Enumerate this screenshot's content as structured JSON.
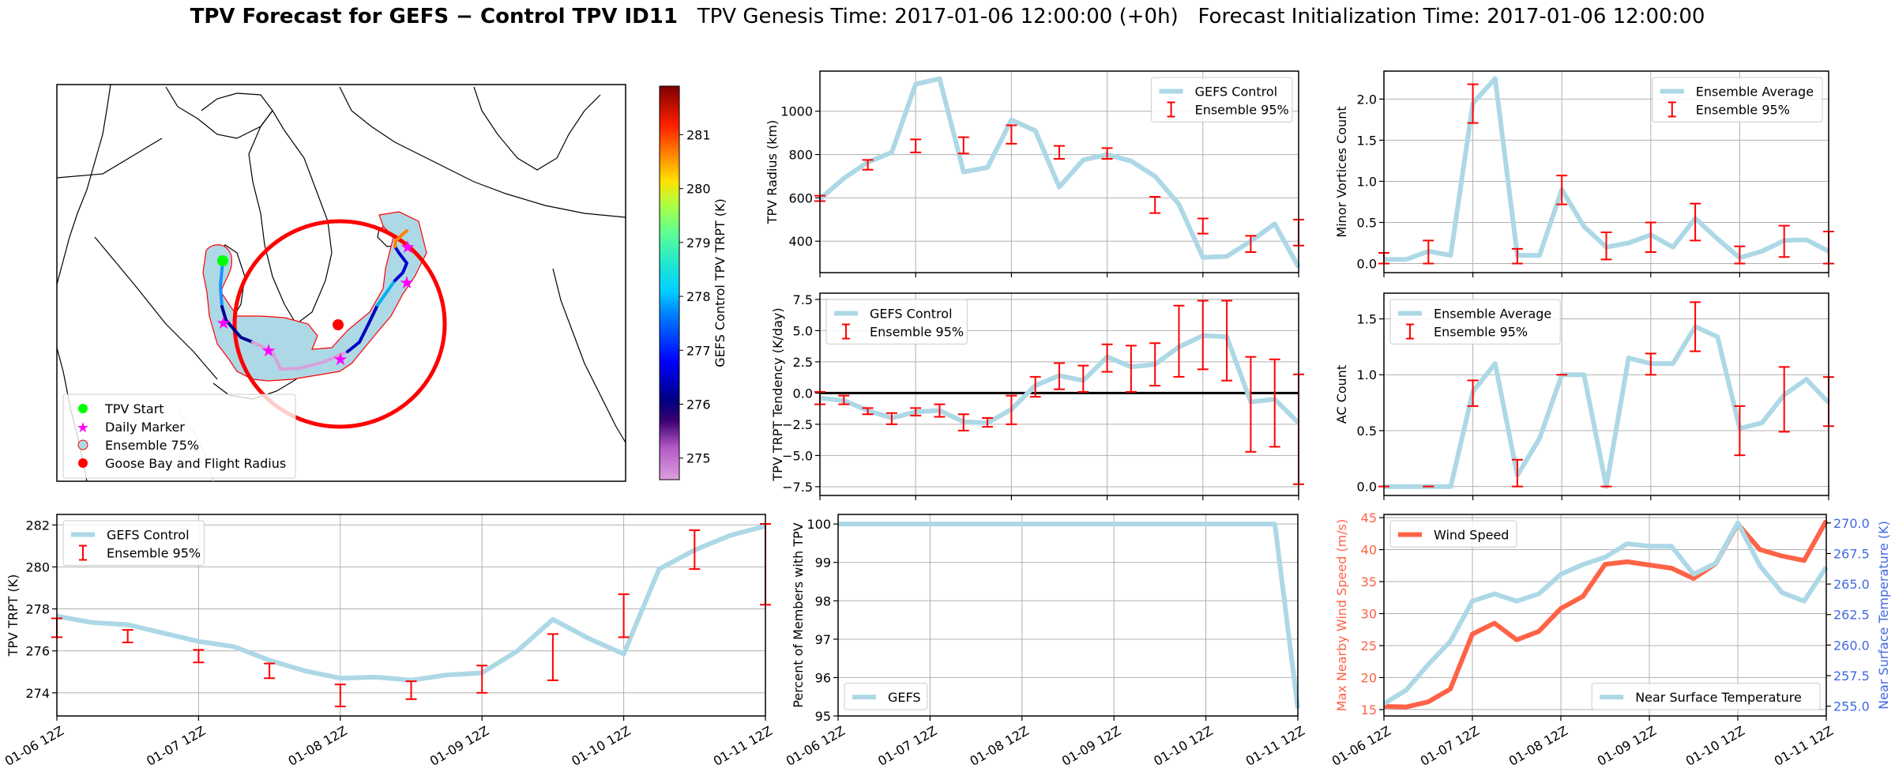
{
  "title": {
    "bold": "TPV Forecast for GEFS − Control TPV ID11",
    "genesis": "TPV Genesis Time: 2017-01-06 12:00:00 (+0h)",
    "init": "Forecast Initialization Time: 2017-01-06 12:00:00"
  },
  "colors": {
    "line": "#add8e6",
    "errorbar": "#ff0000",
    "wind": "#ff6347",
    "temp_axis": "#4169e1",
    "grid": "#b0b0b0"
  },
  "x_tick_labels": [
    "01-06 12Z",
    "01-07 12Z",
    "01-08 12Z",
    "01-09 12Z",
    "01-10 12Z",
    "01-11 12Z"
  ],
  "map": {
    "legend": [
      "TPV Start",
      "Daily Marker",
      "Ensemble 75%",
      "Goose Bay and Flight Radius"
    ],
    "colorbar": {
      "label": "GEFS Control TPV TRPT (K)",
      "ticks": [
        "275",
        "276",
        "277",
        "278",
        "279",
        "280",
        "281"
      ],
      "range": [
        274.6,
        281.9
      ]
    }
  },
  "chart_data": [
    {
      "id": "radius",
      "type": "line",
      "ylabel": "TPV Radius (km)",
      "ylim": [
        255,
        1185
      ],
      "yticks": [
        400,
        600,
        800,
        1000
      ],
      "ytick_labels": [
        "400",
        "600",
        "800",
        "1000"
      ],
      "legend": [
        "GEFS Control",
        "Ensemble 95%"
      ],
      "legend_pos": "top-right",
      "x": [
        0,
        0.25,
        0.5,
        0.75,
        1,
        1.25,
        1.5,
        1.75,
        2,
        2.25,
        2.5,
        2.75,
        3,
        3.25,
        3.5,
        3.75,
        4,
        4.25,
        4.5,
        4.75,
        5
      ],
      "series": [
        {
          "name": "GEFS Control",
          "values": [
            595,
            690,
            765,
            810,
            1125,
            1150,
            720,
            740,
            960,
            910,
            650,
            775,
            800,
            770,
            700,
            570,
            325,
            330,
            400,
            480,
            280
          ]
        }
      ],
      "errorbars": {
        "x": [
          0,
          0.5,
          1,
          1.5,
          2,
          2.5,
          3,
          3.5,
          4,
          4.5,
          5
        ],
        "low": [
          585,
          730,
          810,
          805,
          850,
          780,
          780,
          530,
          435,
          350,
          380
        ],
        "high": [
          610,
          775,
          870,
          880,
          935,
          840,
          830,
          605,
          505,
          425,
          500
        ]
      },
      "show_xticklabels": false
    },
    {
      "id": "tendency",
      "type": "line",
      "ylabel": "TPV TRPT Tendency (K/day)",
      "ylim": [
        -8.2,
        8.0
      ],
      "yticks": [
        -7.5,
        -5.0,
        -2.5,
        0,
        2.5,
        5.0,
        7.5
      ],
      "ytick_labels": [
        "−7.5",
        "−5.0",
        "−2.5",
        "0.0",
        "2.5",
        "5.0",
        "7.5"
      ],
      "legend": [
        "GEFS Control",
        "Ensemble 95%"
      ],
      "legend_pos": "top-left",
      "zero_line": true,
      "x": [
        0,
        0.25,
        0.5,
        0.75,
        1,
        1.25,
        1.5,
        1.75,
        2,
        2.25,
        2.5,
        2.75,
        3,
        3.25,
        3.5,
        3.75,
        4,
        4.25,
        4.5,
        4.75,
        5
      ],
      "series": [
        {
          "name": "GEFS Control",
          "values": [
            -0.4,
            -0.6,
            -1.4,
            -2.0,
            -1.5,
            -1.4,
            -2.3,
            -2.4,
            -1.3,
            0.6,
            1.4,
            1.0,
            2.9,
            2.1,
            2.3,
            3.7,
            4.6,
            4.5,
            -0.7,
            -0.5,
            -2.4
          ]
        }
      ],
      "errorbars": {
        "x": [
          0,
          0.25,
          0.5,
          0.75,
          1,
          1.25,
          1.5,
          1.75,
          2,
          2.25,
          2.5,
          2.75,
          3,
          3.25,
          3.5,
          3.75,
          4,
          4.25,
          4.5,
          4.75,
          5
        ],
        "low": [
          -0.9,
          -0.9,
          -1.7,
          -2.5,
          -1.8,
          -1.9,
          -3.0,
          -2.7,
          -2.5,
          -0.3,
          0.3,
          0.1,
          1.7,
          0.1,
          0.6,
          1.3,
          1.9,
          1.0,
          -4.7,
          -4.3,
          -7.3
        ],
        "high": [
          0.1,
          -0.2,
          -1.2,
          -1.6,
          -1.2,
          -0.9,
          -1.7,
          -2.0,
          -0.2,
          1.3,
          2.4,
          2.2,
          3.9,
          3.8,
          4.0,
          7.0,
          7.4,
          7.4,
          2.9,
          2.7,
          1.5
        ]
      },
      "show_xticklabels": false
    },
    {
      "id": "minor_vortices",
      "type": "line",
      "ylabel": "Minor Vortices Count",
      "ylim": [
        -0.11,
        2.34
      ],
      "yticks": [
        0,
        0.5,
        1.0,
        1.5,
        2.0
      ],
      "ytick_labels": [
        "0.0",
        "0.5",
        "1.0",
        "1.5",
        "2.0"
      ],
      "legend": [
        "Ensemble Average",
        "Ensemble 95%"
      ],
      "legend_pos": "top-right",
      "x": [
        0,
        0.25,
        0.5,
        0.75,
        1,
        1.25,
        1.5,
        1.75,
        2,
        2.25,
        2.5,
        2.75,
        3,
        3.25,
        3.5,
        3.75,
        4,
        4.25,
        4.5,
        4.75,
        5
      ],
      "series": [
        {
          "name": "Ensemble Average",
          "values": [
            0.05,
            0.05,
            0.15,
            0.1,
            1.95,
            2.25,
            0.1,
            0.1,
            0.9,
            0.45,
            0.2,
            0.25,
            0.35,
            0.2,
            0.55,
            0.3,
            0.07,
            0.15,
            0.28,
            0.29,
            0.15
          ]
        }
      ],
      "errorbars": {
        "x": [
          0,
          0.5,
          1,
          1.5,
          2,
          2.5,
          3,
          3.5,
          4,
          4.5,
          5
        ],
        "low": [
          0,
          0,
          1.71,
          0,
          0.72,
          0.05,
          0.14,
          0.28,
          0,
          0.08,
          0
        ],
        "high": [
          0.13,
          0.28,
          2.18,
          0.18,
          1.07,
          0.38,
          0.5,
          0.73,
          0.21,
          0.46,
          0.39
        ]
      },
      "show_xticklabels": false
    },
    {
      "id": "ac_count",
      "type": "line",
      "ylabel": "AC Count",
      "ylim": [
        -0.08,
        1.73
      ],
      "yticks": [
        0,
        0.5,
        1.0,
        1.5
      ],
      "ytick_labels": [
        "0.0",
        "0.5",
        "1.0",
        "1.5"
      ],
      "legend": [
        "Ensemble Average",
        "Ensemble 95%"
      ],
      "legend_pos": "top-left",
      "x": [
        0,
        0.25,
        0.5,
        0.75,
        1,
        1.25,
        1.5,
        1.75,
        2,
        2.25,
        2.5,
        2.75,
        3,
        3.25,
        3.5,
        3.75,
        4,
        4.25,
        4.5,
        4.75,
        5
      ],
      "series": [
        {
          "name": "Ensemble Average",
          "values": [
            0,
            0,
            0,
            0,
            0.85,
            1.1,
            0.1,
            0.43,
            1.0,
            1.0,
            0,
            1.15,
            1.1,
            1.1,
            1.43,
            1.34,
            0.52,
            0.57,
            0.82,
            0.96,
            0.75
          ]
        }
      ],
      "errorbars": {
        "x": [
          0,
          0.5,
          1,
          1.5,
          2,
          2.5,
          3,
          3.5,
          4,
          4.5,
          5
        ],
        "low": [
          0,
          0,
          0.72,
          0,
          1.0,
          0,
          1.0,
          1.21,
          0.28,
          0.49,
          0.54
        ],
        "high": [
          0,
          0,
          0.95,
          0.24,
          1.0,
          0,
          1.19,
          1.65,
          0.72,
          1.07,
          0.98
        ]
      },
      "show_xticklabels": false
    },
    {
      "id": "trpt",
      "type": "line",
      "ylabel": "TPV TRPT (K)",
      "ylim": [
        272.9,
        282.5
      ],
      "yticks": [
        274,
        276,
        278,
        280,
        282
      ],
      "ytick_labels": [
        "274",
        "276",
        "278",
        "280",
        "282"
      ],
      "legend": [
        "GEFS Control",
        "Ensemble 95%"
      ],
      "legend_pos": "top-left",
      "x": [
        0,
        0.25,
        0.5,
        0.75,
        1,
        1.25,
        1.5,
        1.75,
        2,
        2.25,
        2.5,
        2.75,
        3,
        3.25,
        3.5,
        3.75,
        4,
        4.25,
        4.5,
        4.75,
        5
      ],
      "series": [
        {
          "name": "GEFS Control",
          "values": [
            277.65,
            277.35,
            277.25,
            276.85,
            276.45,
            276.2,
            275.55,
            275.05,
            274.7,
            274.75,
            274.6,
            274.85,
            274.95,
            276.0,
            277.5,
            276.6,
            275.85,
            279.9,
            280.8,
            281.5,
            281.95
          ]
        }
      ],
      "errorbars": {
        "x": [
          0,
          0.5,
          1,
          1.5,
          2,
          2.5,
          3,
          3.5,
          4,
          4.5,
          5
        ],
        "low": [
          276.65,
          276.4,
          275.45,
          274.7,
          273.35,
          273.7,
          274.0,
          274.6,
          276.65,
          279.9,
          278.2
        ],
        "high": [
          277.55,
          277.0,
          276.05,
          275.4,
          274.4,
          274.55,
          275.3,
          276.8,
          278.7,
          281.75,
          282.05
        ]
      },
      "show_xticklabels": true
    },
    {
      "id": "percent_members",
      "type": "line",
      "ylabel": "Percent of Members with TPV",
      "ylim": [
        95,
        100.25
      ],
      "yticks": [
        95,
        96,
        97,
        98,
        99,
        100
      ],
      "ytick_labels": [
        "95",
        "96",
        "97",
        "98",
        "99",
        "100"
      ],
      "legend": [
        "GEFS"
      ],
      "legend_pos": "bottom-left",
      "x": [
        0,
        0.25,
        0.5,
        0.75,
        1,
        1.25,
        1.5,
        1.75,
        2,
        2.25,
        2.5,
        2.75,
        3,
        3.25,
        3.5,
        3.75,
        4,
        4.25,
        4.5,
        4.75,
        5
      ],
      "series": [
        {
          "name": "GEFS",
          "values": [
            100,
            100,
            100,
            100,
            100,
            100,
            100,
            100,
            100,
            100,
            100,
            100,
            100,
            100,
            100,
            100,
            100,
            100,
            100,
            100,
            95.2
          ]
        }
      ],
      "show_xticklabels": true
    },
    {
      "id": "wind_temp",
      "type": "line",
      "ylabel": "Max Nearby Wind Speed (m/s)",
      "ylabel_right": "Near Surface Temperature (K)",
      "ylim": [
        14,
        45.5
      ],
      "yticks": [
        15,
        20,
        25,
        30,
        35,
        40,
        45
      ],
      "ytick_labels": [
        "15",
        "20",
        "25",
        "30",
        "35",
        "40",
        "45"
      ],
      "ylim_right": [
        254.2,
        270.7
      ],
      "yticks_right": [
        255,
        257.5,
        260,
        262.5,
        265,
        267.5,
        270
      ],
      "ytick_labels_right": [
        "255.0",
        "257.5",
        "260.0",
        "262.5",
        "265.0",
        "267.5",
        "270.0"
      ],
      "legend": [
        "Wind Speed"
      ],
      "legend_right": [
        "Near Surface Temperature"
      ],
      "legend_pos": "top-left",
      "legend_right_pos": "bottom-right",
      "x": [
        0,
        0.25,
        0.5,
        0.75,
        1,
        1.25,
        1.5,
        1.75,
        2,
        2.25,
        2.5,
        2.75,
        3,
        3.25,
        3.5,
        3.75,
        4,
        4.25,
        4.5,
        4.75,
        5
      ],
      "series": [
        {
          "name": "Wind Speed",
          "axis": "left",
          "values": [
            15.5,
            15.4,
            16.2,
            18.2,
            26.8,
            28.5,
            25.9,
            27.2,
            30.8,
            32.7,
            37.7,
            38.1,
            37.6,
            37.1,
            35.5,
            37.8,
            44,
            40,
            39,
            38.3,
            44.5
          ]
        },
        {
          "name": "Near Surface Temperature",
          "axis": "right",
          "values": [
            255.2,
            256.3,
            258.4,
            260.3,
            263.6,
            264.2,
            263.6,
            264.2,
            265.8,
            266.6,
            267.2,
            268.3,
            268.1,
            268.1,
            265.8,
            266.7,
            270.0,
            266.5,
            264.3,
            263.6,
            266.4
          ]
        }
      ],
      "show_xticklabels": true
    }
  ]
}
